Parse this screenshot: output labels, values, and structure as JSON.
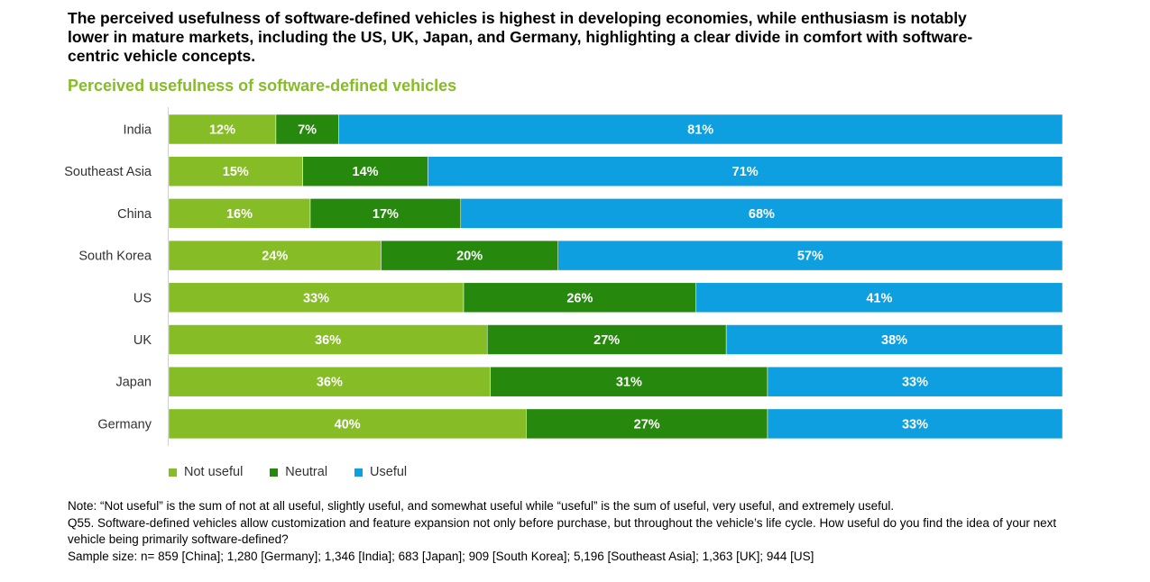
{
  "headline": "The perceived usefulness of software-defined vehicles is highest in developing economies, while enthusiasm is notably lower in mature markets, including the US, UK, Japan, and Germany, highlighting a clear divide in comfort with software-centric vehicle concepts.",
  "chart_data": {
    "type": "bar",
    "orientation": "horizontal",
    "stacked": true,
    "title": "Perceived usefulness of software-defined vehicles",
    "categories": [
      "India",
      "Southeast Asia",
      "China",
      "South Korea",
      "US",
      "UK",
      "Japan",
      "Germany"
    ],
    "series": [
      {
        "name": "Not useful",
        "color": "#86bc25",
        "values": [
          12,
          15,
          16,
          24,
          33,
          36,
          36,
          40
        ],
        "labels": [
          "12%",
          "15%",
          "16%",
          "24%",
          "33%",
          "36%",
          "36%",
          "40%"
        ]
      },
      {
        "name": "Neutral",
        "color": "#26890d",
        "values": [
          7,
          14,
          17,
          20,
          26,
          27,
          31,
          27
        ],
        "labels": [
          "7%",
          "14%",
          "17%",
          "20%",
          "26%",
          "27%",
          "31%",
          "27%"
        ]
      },
      {
        "name": "Useful",
        "color": "#0d9fdf",
        "values": [
          81,
          71,
          68,
          57,
          41,
          38,
          33,
          33
        ],
        "labels": [
          "81%",
          "71%",
          "68%",
          "57%",
          "41%",
          "38%",
          "33%",
          "33%"
        ]
      }
    ],
    "xlim": [
      0,
      100
    ],
    "legend_position": "bottom-left"
  },
  "notes": [
    "Note: “Not useful” is the sum of not at all useful, slightly useful, and somewhat useful while “useful” is the sum of useful, very useful, and extremely useful.",
    "Q55. Software-defined vehicles allow customization and feature expansion not only before purchase, but throughout the vehicle’s life cycle. How useful do you find the idea of your next vehicle being primarily software-defined?",
    "Sample size: n= 859 [China]; 1,280 [Germany]; 1,346 [India]; 683 [Japan]; 909 [South Korea]; 5,196 [Southeast Asia]; 1,363 [UK]; 944 [US]"
  ]
}
